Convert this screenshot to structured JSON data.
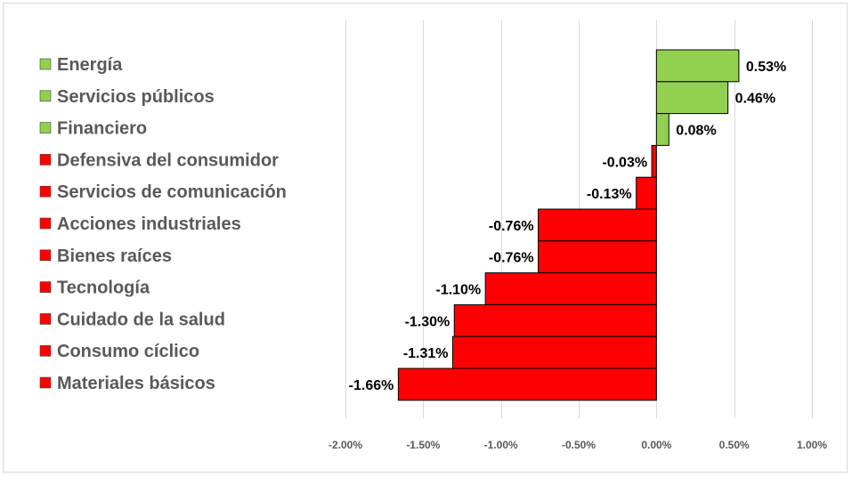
{
  "chart_data": {
    "type": "bar",
    "orientation": "horizontal",
    "categories": [
      "Energía",
      "Servicios públicos",
      "Financiero",
      "Defensiva del consumidor",
      "Servicios de comunicación",
      "Acciones industriales",
      "Bienes raíces",
      "Tecnología",
      "Cuidado de la salud",
      "Consumo cíclico",
      "Materiales básicos"
    ],
    "values": [
      0.53,
      0.46,
      0.08,
      -0.03,
      -0.13,
      -0.76,
      -0.76,
      -1.1,
      -1.3,
      -1.31,
      -1.66
    ],
    "data_labels": [
      "0.53%",
      "0.46%",
      "0.08%",
      "-0.03%",
      "-0.13%",
      "-0.76%",
      "-0.76%",
      "-1.10%",
      "-1.30%",
      "-1.31%",
      "-1.66%"
    ],
    "xlim": [
      -2.0,
      1.0
    ],
    "x_ticks": [
      -2.0,
      -1.5,
      -1.0,
      -0.5,
      0.0,
      0.5,
      1.0
    ],
    "x_tick_labels": [
      "-2.00%",
      "-1.50%",
      "-1.00%",
      "-0.50%",
      "0.00%",
      "0.50%",
      "1.00%"
    ],
    "title": "",
    "xlabel": "",
    "ylabel": "",
    "grid": "vertical",
    "legend_placement": "left",
    "colors": {
      "positive": "#92d050",
      "negative": "#ff0000",
      "bar_border": "#000000",
      "gridline": "#d9d9d9",
      "label_text": "#595959"
    }
  }
}
